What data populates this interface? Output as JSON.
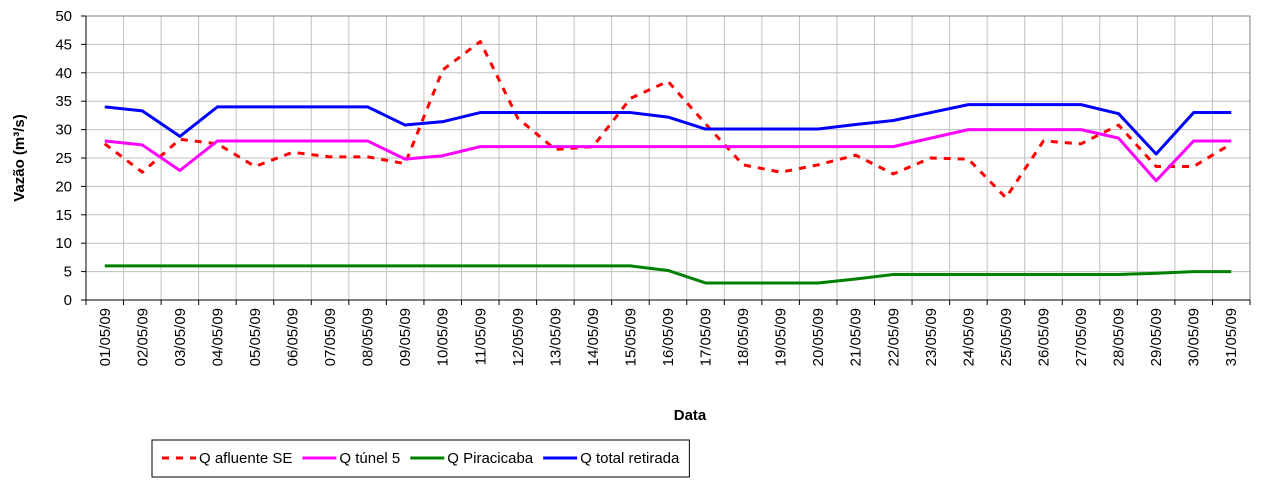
{
  "chart_data": {
    "type": "line",
    "x_label": "Data",
    "y_label": "Vazão (m³/s)",
    "categories": [
      "01/05/09",
      "02/05/09",
      "03/05/09",
      "04/05/09",
      "05/05/09",
      "06/05/09",
      "07/05/09",
      "08/05/09",
      "09/05/09",
      "10/05/09",
      "11/05/09",
      "12/05/09",
      "13/05/09",
      "14/05/09",
      "15/05/09",
      "16/05/09",
      "17/05/09",
      "18/05/09",
      "19/05/09",
      "20/05/09",
      "21/05/09",
      "22/05/09",
      "23/05/09",
      "24/05/09",
      "25/05/09",
      "26/05/09",
      "27/05/09",
      "28/05/09",
      "29/05/09",
      "30/05/09",
      "31/05/09"
    ],
    "series": [
      {
        "name": "Q afluente SE",
        "color": "#ff0000",
        "dashed": true,
        "values": [
          27.5,
          22.5,
          28.3,
          27.5,
          23.5,
          26,
          25.2,
          25.2,
          24,
          40.5,
          45.5,
          32,
          26.5,
          27,
          35.5,
          38.5,
          31,
          23.8,
          22.5,
          23.8,
          25.5,
          22.2,
          25,
          24.8,
          18,
          28,
          27.5,
          30.8,
          23.5,
          23.5,
          27.5
        ]
      },
      {
        "name": "Q túnel 5",
        "color": "#ff00ff",
        "values": [
          28,
          27.3,
          22.8,
          28,
          28,
          28,
          28,
          28,
          24.8,
          25.4,
          27,
          27,
          27,
          27,
          27,
          27,
          27,
          27,
          27,
          27,
          27,
          27,
          28.5,
          30,
          30,
          30,
          30,
          28.5,
          21,
          28,
          28
        ]
      },
      {
        "name": "Q Piracicaba",
        "color": "#008000",
        "values": [
          6,
          6,
          6,
          6,
          6,
          6,
          6,
          6,
          6,
          6,
          6,
          6,
          6,
          6,
          6,
          5.2,
          3,
          3,
          3,
          3,
          3.7,
          4.5,
          4.5,
          4.5,
          4.5,
          4.5,
          4.5,
          4.5,
          4.7,
          5,
          5
        ]
      },
      {
        "name": "Q total retirada",
        "color": "#0000ff",
        "values": [
          34,
          33.3,
          28.8,
          34,
          34,
          34,
          34,
          34,
          30.8,
          31.4,
          33,
          33,
          33,
          33,
          33,
          32.2,
          30.1,
          30.1,
          30.1,
          30.1,
          30.9,
          31.6,
          33,
          34.4,
          34.4,
          34.4,
          34.4,
          32.8,
          25.7,
          33,
          33
        ]
      }
    ],
    "ylim": [
      0,
      50
    ],
    "yticks": [
      0,
      5,
      10,
      15,
      20,
      25,
      30,
      35,
      40,
      45,
      50
    ],
    "grid": true,
    "legend": "bottom"
  }
}
